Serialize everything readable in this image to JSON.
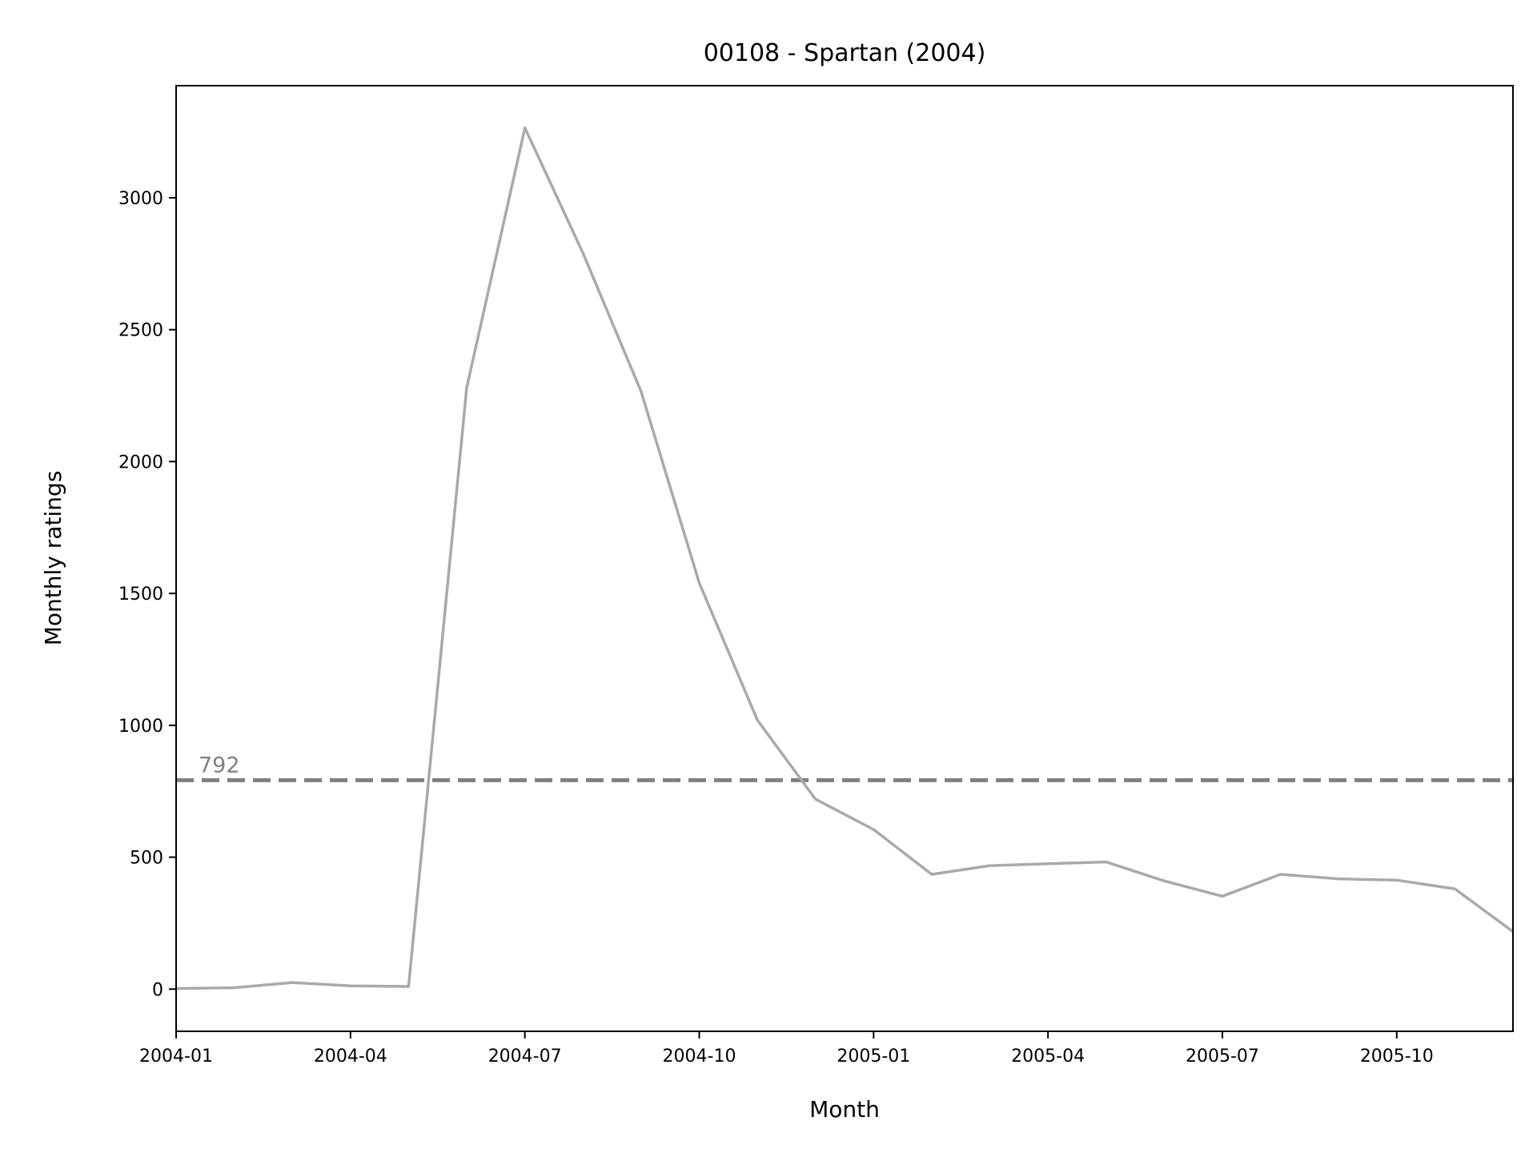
{
  "chart_data": {
    "type": "line",
    "title": "00108 - Spartan (2004)",
    "xlabel": "Month",
    "ylabel": "Monthly ratings",
    "x_ticks": [
      "2004-01",
      "2004-04",
      "2004-07",
      "2004-10",
      "2005-01",
      "2005-04",
      "2005-07",
      "2005-10"
    ],
    "y_ticks": [
      "0",
      "500",
      "1000",
      "1500",
      "2000",
      "2500",
      "3000"
    ],
    "xlim": [
      "2004-01",
      "2005-12"
    ],
    "ylim": [
      -160,
      3425
    ],
    "grid": false,
    "series": [
      {
        "color": "#a9a9a9",
        "x": [
          "2004-01",
          "2004-02",
          "2004-03",
          "2004-04",
          "2004-05",
          "2004-06",
          "2004-07",
          "2004-08",
          "2004-09",
          "2004-10",
          "2004-11",
          "2004-12",
          "2005-01",
          "2005-02",
          "2005-03",
          "2005-04",
          "2005-05",
          "2005-06",
          "2005-07",
          "2005-08",
          "2005-09",
          "2005-10",
          "2005-11",
          "2005-12"
        ],
        "values": [
          2,
          5,
          25,
          12,
          10,
          2280,
          3265,
          2790,
          2265,
          1540,
          1020,
          720,
          605,
          435,
          468,
          475,
          482,
          410,
          352,
          435,
          418,
          413,
          380,
          218
        ]
      }
    ],
    "reference_line": {
      "value": 792,
      "label": "792",
      "color": "#808080",
      "style": "dashed"
    }
  }
}
